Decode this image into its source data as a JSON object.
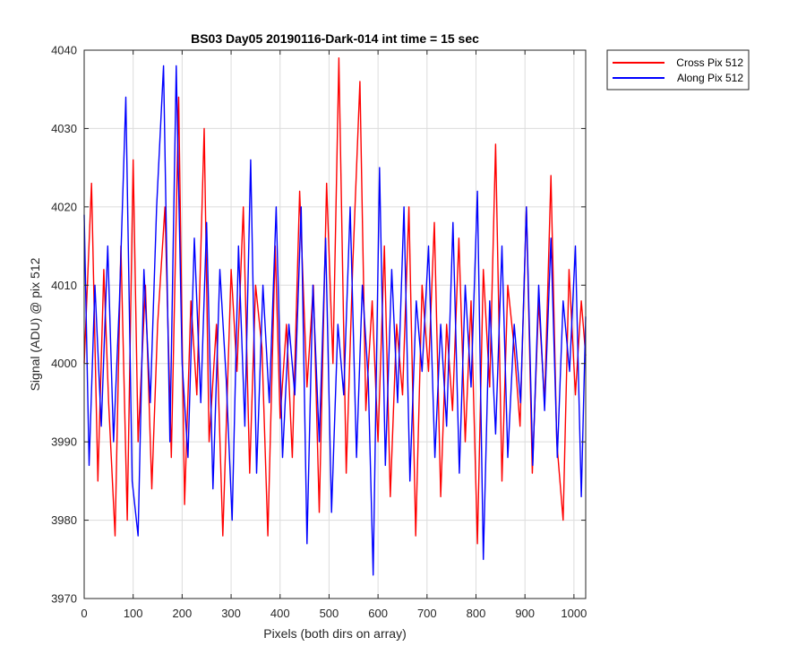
{
  "chart_data": {
    "type": "line",
    "title": "BS03 Day05 20190116-Dark-014 int time = 15 sec",
    "xlabel": "Pixels (both dirs on array)",
    "ylabel": "Signal (ADU) @ pix 512",
    "xlim": [
      0,
      1024
    ],
    "ylim": [
      3970,
      4040
    ],
    "xticks": [
      0,
      100,
      200,
      300,
      400,
      500,
      600,
      700,
      800,
      900,
      1000
    ],
    "yticks": [
      3970,
      3980,
      3990,
      4000,
      4010,
      4020,
      4030,
      4040
    ],
    "grid": true,
    "legend_position": "outside-top-right",
    "series": [
      {
        "name": "Cross Pix 512",
        "color": "#ff0000",
        "x": [
          0,
          15,
          28,
          40,
          50,
          63,
          75,
          88,
          100,
          110,
          125,
          138,
          150,
          165,
          178,
          193,
          205,
          218,
          230,
          245,
          255,
          270,
          283,
          300,
          312,
          325,
          338,
          350,
          363,
          375,
          390,
          400,
          413,
          425,
          440,
          455,
          468,
          480,
          495,
          508,
          520,
          535,
          548,
          563,
          575,
          588,
          600,
          613,
          625,
          638,
          650,
          663,
          677,
          690,
          703,
          715,
          728,
          740,
          752,
          765,
          778,
          790,
          803,
          815,
          828,
          840,
          853,
          865,
          878,
          890,
          903,
          915,
          928,
          940,
          953,
          965,
          978,
          990,
          1003,
          1015,
          1024
        ],
        "y": [
          4000,
          4023,
          3985,
          4012,
          3995,
          3978,
          4015,
          3980,
          4026,
          3990,
          4010,
          3984,
          4005,
          4020,
          3988,
          4034,
          3982,
          4008,
          3996,
          4030,
          3990,
          4005,
          3978,
          4012,
          3999,
          4020,
          3986,
          4010,
          4002,
          3978,
          4015,
          3993,
          4005,
          3988,
          4022,
          3997,
          4010,
          3981,
          4023,
          4000,
          4039,
          3986,
          4012,
          4036,
          3994,
          4008,
          3990,
          4015,
          3983,
          4005,
          3996,
          4020,
          3978,
          4010,
          3999,
          4018,
          3983,
          4005,
          3994,
          4016,
          3990,
          4008,
          3977,
          4012,
          3997,
          4028,
          3985,
          4010,
          4002,
          3992,
          4020,
          3986,
          4008,
          3995,
          4024,
          3990,
          3980,
          4012,
          3996,
          4008,
          4001
        ]
      },
      {
        "name": "Along Pix 512",
        "color": "#0000ff",
        "x": [
          0,
          10,
          22,
          35,
          48,
          60,
          72,
          85,
          98,
          110,
          122,
          135,
          148,
          162,
          175,
          188,
          200,
          212,
          225,
          238,
          250,
          263,
          277,
          290,
          302,
          315,
          328,
          340,
          352,
          365,
          378,
          392,
          405,
          418,
          430,
          443,
          455,
          467,
          480,
          493,
          505,
          518,
          530,
          543,
          556,
          568,
          580,
          590,
          603,
          615,
          628,
          640,
          653,
          665,
          678,
          690,
          703,
          716,
          728,
          740,
          753,
          766,
          778,
          790,
          803,
          815,
          828,
          840,
          853,
          865,
          878,
          891,
          903,
          916,
          928,
          940,
          953,
          966,
          978,
          991,
          1003,
          1015,
          1024
        ],
        "y": [
          4019,
          3987,
          4010,
          3992,
          4015,
          3990,
          4008,
          4034,
          3985,
          3978,
          4012,
          3995,
          4020,
          4038,
          3990,
          4038,
          4000,
          3988,
          4016,
          3995,
          4018,
          3984,
          4012,
          3998,
          3980,
          4015,
          3992,
          4026,
          3986,
          4010,
          3995,
          4020,
          3988,
          4005,
          3996,
          4020,
          3977,
          4010,
          3990,
          4016,
          3981,
          4005,
          3996,
          4020,
          3988,
          4010,
          3998,
          3973,
          4025,
          3987,
          4012,
          3995,
          4020,
          3985,
          4008,
          3999,
          4015,
          3988,
          4005,
          3992,
          4018,
          3986,
          4010,
          3997,
          4022,
          3975,
          4008,
          3991,
          4015,
          3988,
          4005,
          3995,
          4020,
          3987,
          4010,
          3994,
          4016,
          3988,
          4008,
          3999,
          4015,
          3983,
          4006
        ]
      }
    ]
  }
}
